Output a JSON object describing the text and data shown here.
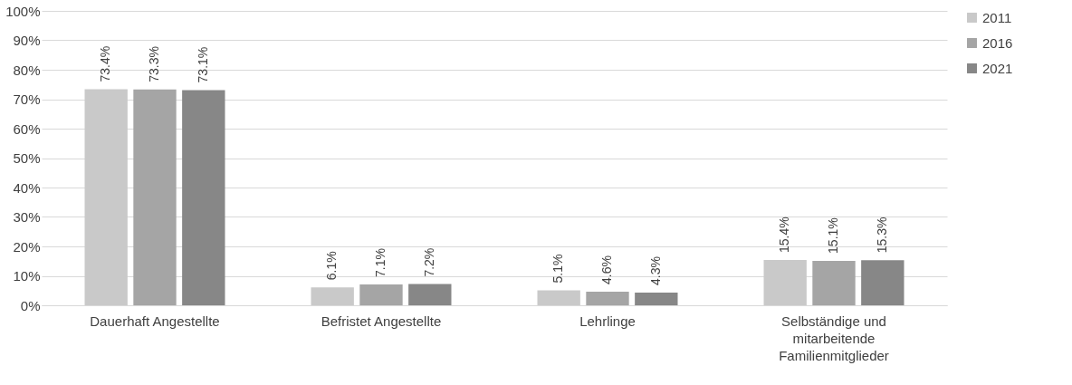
{
  "chart_data": {
    "type": "bar",
    "categories": [
      "Dauerhaft Angestellte",
      "Befristet Angestellte",
      "Lehrlinge",
      "Selbständige und mitarbeitende Familienmitglieder"
    ],
    "series": [
      {
        "name": "2011",
        "color": "#c9c9c9",
        "values": [
          73.4,
          6.1,
          5.1,
          15.4
        ],
        "value_labels": [
          "73.4%",
          "6.1%",
          "5.1%",
          "15.4%"
        ]
      },
      {
        "name": "2016",
        "color": "#a5a5a5",
        "values": [
          73.3,
          7.1,
          4.6,
          15.1
        ],
        "value_labels": [
          "73.3%",
          "7.1%",
          "4.6%",
          "15.1%"
        ]
      },
      {
        "name": "2021",
        "color": "#878787",
        "values": [
          73.1,
          7.2,
          4.3,
          15.3
        ],
        "value_labels": [
          "73.1%",
          "7.2%",
          "4.3%",
          "15.3%"
        ]
      }
    ],
    "ylim": [
      0,
      100
    ],
    "yticks": [
      {
        "value": 0,
        "label": "0%"
      },
      {
        "value": 10,
        "label": "10%"
      },
      {
        "value": 20,
        "label": "20%"
      },
      {
        "value": 30,
        "label": "30%"
      },
      {
        "value": 40,
        "label": "40%"
      },
      {
        "value": 50,
        "label": "50%"
      },
      {
        "value": 60,
        "label": "60%"
      },
      {
        "value": 70,
        "label": "70%"
      },
      {
        "value": 80,
        "label": "80%"
      },
      {
        "value": 90,
        "label": "90%"
      },
      {
        "value": 100,
        "label": "100%"
      }
    ],
    "grid": "y",
    "legend": "right"
  }
}
